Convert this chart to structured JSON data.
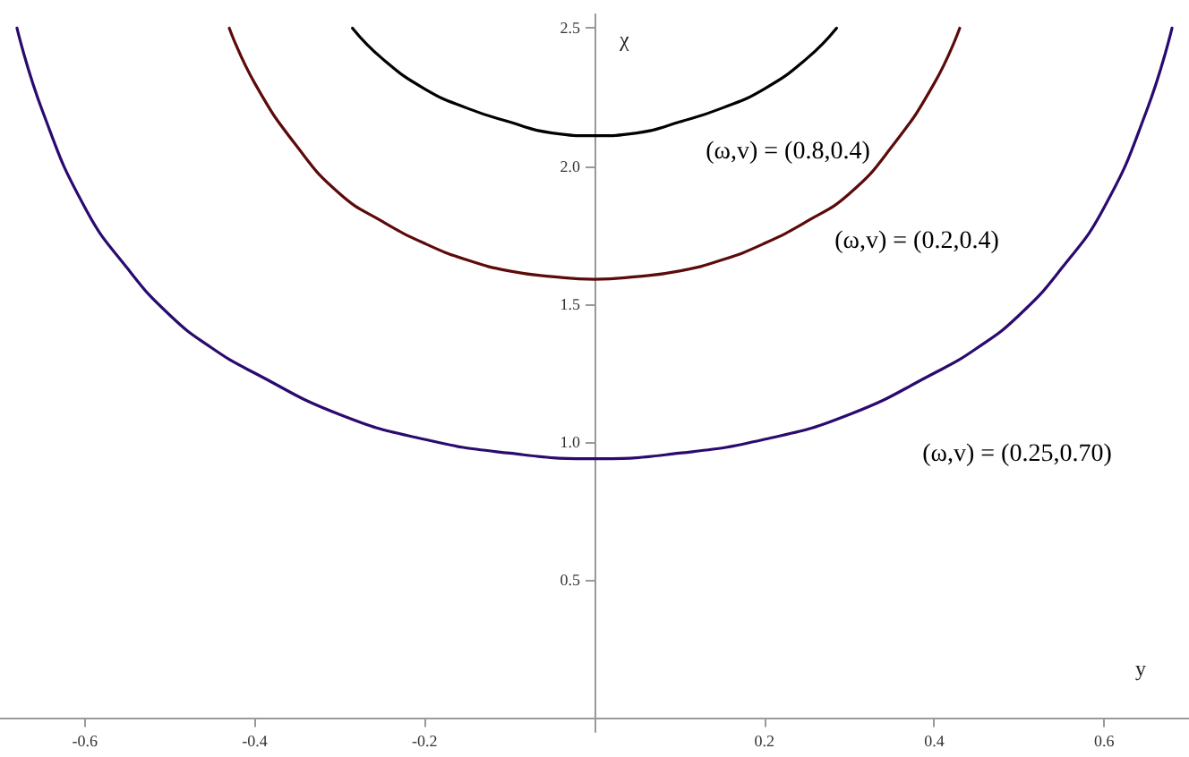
{
  "chart_data": {
    "type": "line",
    "xlabel": "y",
    "ylabel": "χ",
    "xlim": [
      -0.7,
      0.7
    ],
    "xticks": [
      -0.6,
      -0.4,
      -0.2,
      0.2,
      0.4,
      0.6
    ],
    "ylim": [
      -0.05,
      2.55
    ],
    "yticks": [
      0.5,
      {
        "value": 1,
        "label": "1.0"
      },
      1.5,
      {
        "value": 2,
        "label": "2.0"
      },
      2.5
    ],
    "grid": false,
    "marker": "none",
    "line_style": "solid",
    "series": [
      {
        "color": "#000000",
        "x": [
          -0.285,
          -0.25,
          -0.2,
          -0.15,
          -0.1,
          -0.05,
          0,
          0.05,
          0.1,
          0.15,
          0.2,
          0.25,
          0.285
        ],
        "values": [
          2.5,
          2.39,
          2.28,
          2.21,
          2.16,
          2.12,
          2.11,
          2.12,
          2.16,
          2.21,
          2.28,
          2.39,
          2.5
        ]
      },
      {
        "color": "#5c0a0a",
        "x": [
          -0.43,
          -0.4,
          -0.35,
          -0.3,
          -0.25,
          -0.2,
          -0.15,
          -0.1,
          -0.05,
          0,
          0.05,
          0.1,
          0.15,
          0.2,
          0.25,
          0.3,
          0.35,
          0.4,
          0.43
        ],
        "values": [
          2.5,
          2.3,
          2.07,
          1.9,
          1.8,
          1.72,
          1.66,
          1.62,
          1.6,
          1.59,
          1.6,
          1.62,
          1.66,
          1.72,
          1.8,
          1.9,
          2.07,
          2.3,
          2.5
        ]
      },
      {
        "color": "#2a0a6e",
        "x": [
          -0.68,
          -0.65,
          -0.6,
          -0.55,
          -0.5,
          -0.45,
          -0.4,
          -0.3,
          -0.2,
          -0.1,
          0,
          0.1,
          0.2,
          0.3,
          0.4,
          0.45,
          0.5,
          0.55,
          0.6,
          0.65,
          0.68
        ],
        "values": [
          2.5,
          2.2,
          1.85,
          1.63,
          1.46,
          1.34,
          1.25,
          1.1,
          1.01,
          0.96,
          0.94,
          0.96,
          1.01,
          1.1,
          1.25,
          1.34,
          1.46,
          1.63,
          1.85,
          2.2,
          2.5
        ]
      }
    ],
    "annotations": [
      "(ω,v) = (0.8,0.4)",
      "(ω,v) = (0.2,0.4)",
      "(ω,v) = (0.25,0.70)"
    ]
  }
}
